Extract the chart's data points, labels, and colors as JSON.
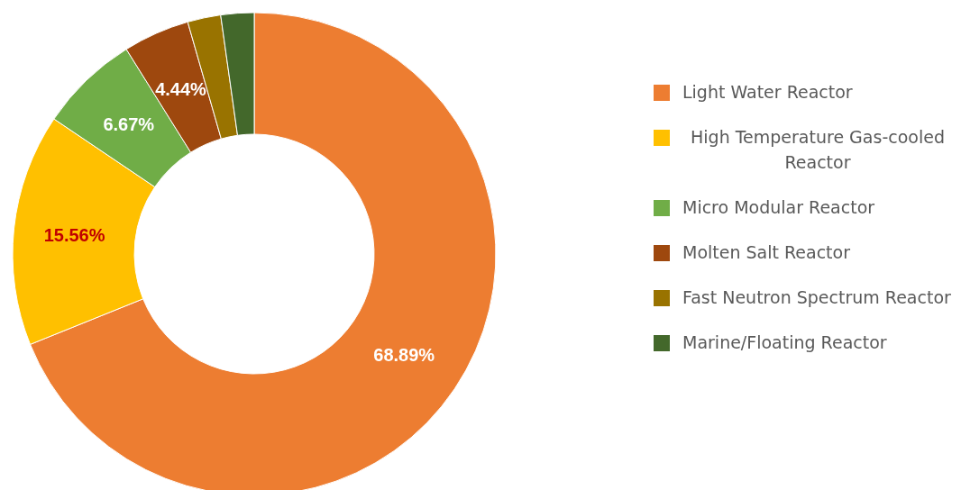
{
  "chart_data": {
    "type": "donut",
    "categories": [
      "Light Water Reactor",
      "High Temperature Gas-cooled Reactor",
      "Micro Modular Reactor",
      "Molten Salt Reactor",
      "Fast Neutron Spectrum Reactor",
      "Marine/Floating Reactor"
    ],
    "values": [
      68.89,
      15.56,
      6.67,
      4.44,
      2.22,
      2.22
    ],
    "colors": [
      "#ed7d31",
      "#ffc000",
      "#70ad47",
      "#9e480e",
      "#997300",
      "#43682b"
    ],
    "value_labels": [
      "68.89%",
      "15.56%",
      "6.67%",
      "4.44%",
      null,
      null
    ],
    "legend": "right"
  }
}
